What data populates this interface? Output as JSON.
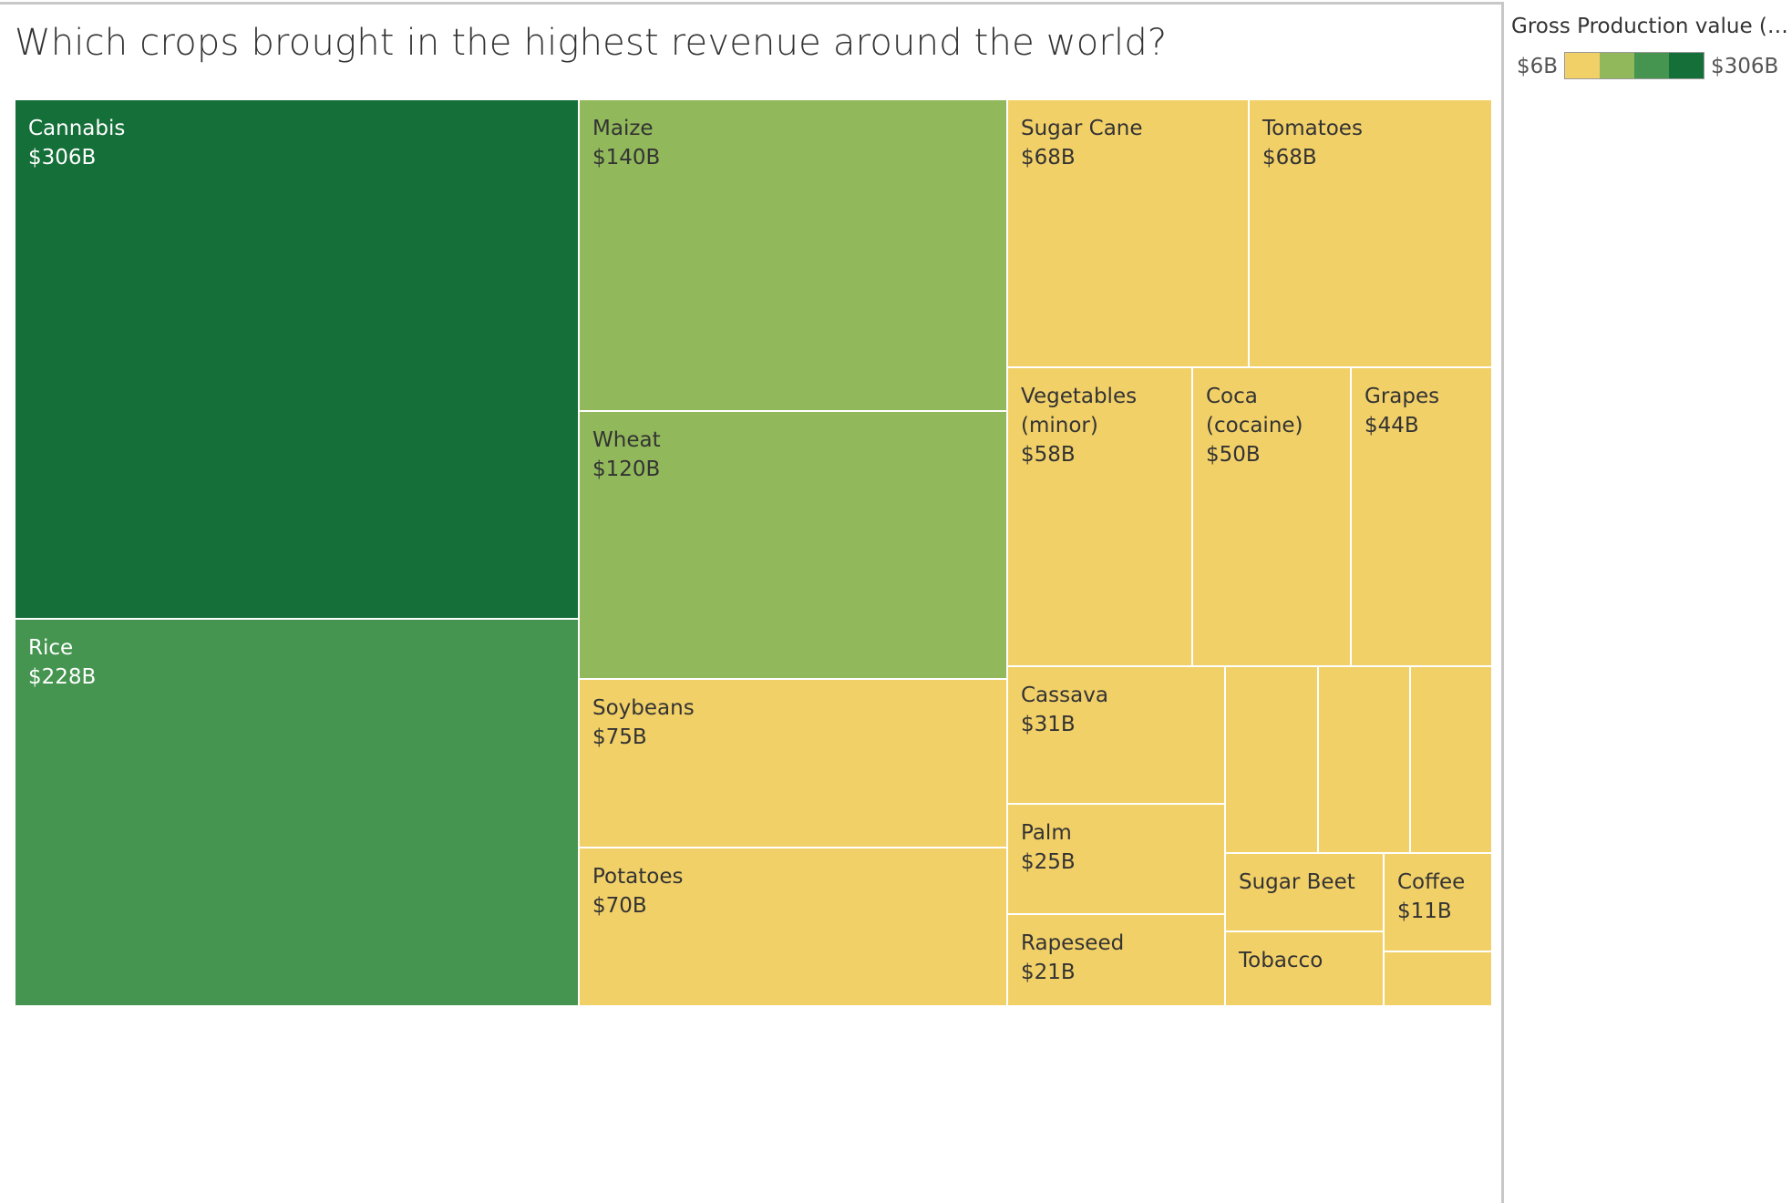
{
  "chart_data": {
    "type": "treemap",
    "title": "Which crops brought in the highest revenue around the world?",
    "legend": {
      "title": "Gross Production value ($..",
      "min_label": "$6B",
      "max_label": "$306B",
      "colors": [
        "#f2d068",
        "#91b85a",
        "#459550",
        "#156f39"
      ]
    },
    "items": [
      {
        "name": "Cannabis",
        "value_label": "$306B",
        "value": 306,
        "color": "#156f39",
        "text_color": "#ffffff"
      },
      {
        "name": "Rice",
        "value_label": "$228B",
        "value": 228,
        "color": "#459550",
        "text_color": "#ffffff"
      },
      {
        "name": "Maize",
        "value_label": "$140B",
        "value": 140,
        "color": "#91b85a",
        "text_color": "#333333"
      },
      {
        "name": "Wheat",
        "value_label": "$120B",
        "value": 120,
        "color": "#91b85a",
        "text_color": "#333333"
      },
      {
        "name": "Soybeans",
        "value_label": "$75B",
        "value": 75,
        "color": "#f2d068",
        "text_color": "#333333"
      },
      {
        "name": "Potatoes",
        "value_label": "$70B",
        "value": 70,
        "color": "#f2d068",
        "text_color": "#333333"
      },
      {
        "name": "Sugar Cane",
        "value_label": "$68B",
        "value": 68,
        "color": "#f2d068",
        "text_color": "#333333"
      },
      {
        "name": "Tomatoes",
        "value_label": "$68B",
        "value": 68,
        "color": "#f2d068",
        "text_color": "#333333"
      },
      {
        "name": "Vegetables (minor)",
        "value_label": "$58B",
        "value": 58,
        "color": "#f2d068",
        "text_color": "#333333"
      },
      {
        "name": "Coca (cocaine)",
        "value_label": "$50B",
        "value": 50,
        "color": "#f2d068",
        "text_color": "#333333"
      },
      {
        "name": "Grapes",
        "value_label": "$44B",
        "value": 44,
        "color": "#f2d068",
        "text_color": "#333333"
      },
      {
        "name": "Cassava",
        "value_label": "$31B",
        "value": 31,
        "color": "#f2d068",
        "text_color": "#333333"
      },
      {
        "name": "Palm",
        "value_label": "$25B",
        "value": 25,
        "color": "#f2d068",
        "text_color": "#333333"
      },
      {
        "name": "Rapeseed",
        "value_label": "$21B",
        "value": 21,
        "color": "#f2d068",
        "text_color": "#333333"
      },
      {
        "name": "",
        "value_label": "",
        "value": null,
        "color": "#f2d068",
        "text_color": "#333333"
      },
      {
        "name": "",
        "value_label": "",
        "value": null,
        "color": "#f2d068",
        "text_color": "#333333"
      },
      {
        "name": "",
        "value_label": "",
        "value": null,
        "color": "#f2d068",
        "text_color": "#333333"
      },
      {
        "name": "Sugar Beet",
        "value_label": "",
        "value": null,
        "color": "#f2d068",
        "text_color": "#333333"
      },
      {
        "name": "Coffee",
        "value_label": "$11B",
        "value": 11,
        "color": "#f2d068",
        "text_color": "#333333"
      },
      {
        "name": "Tobacco",
        "value_label": "",
        "value": null,
        "color": "#f2d068",
        "text_color": "#333333"
      },
      {
        "name": "",
        "value_label": "",
        "value": null,
        "color": "#f2d068",
        "text_color": "#333333"
      }
    ]
  }
}
